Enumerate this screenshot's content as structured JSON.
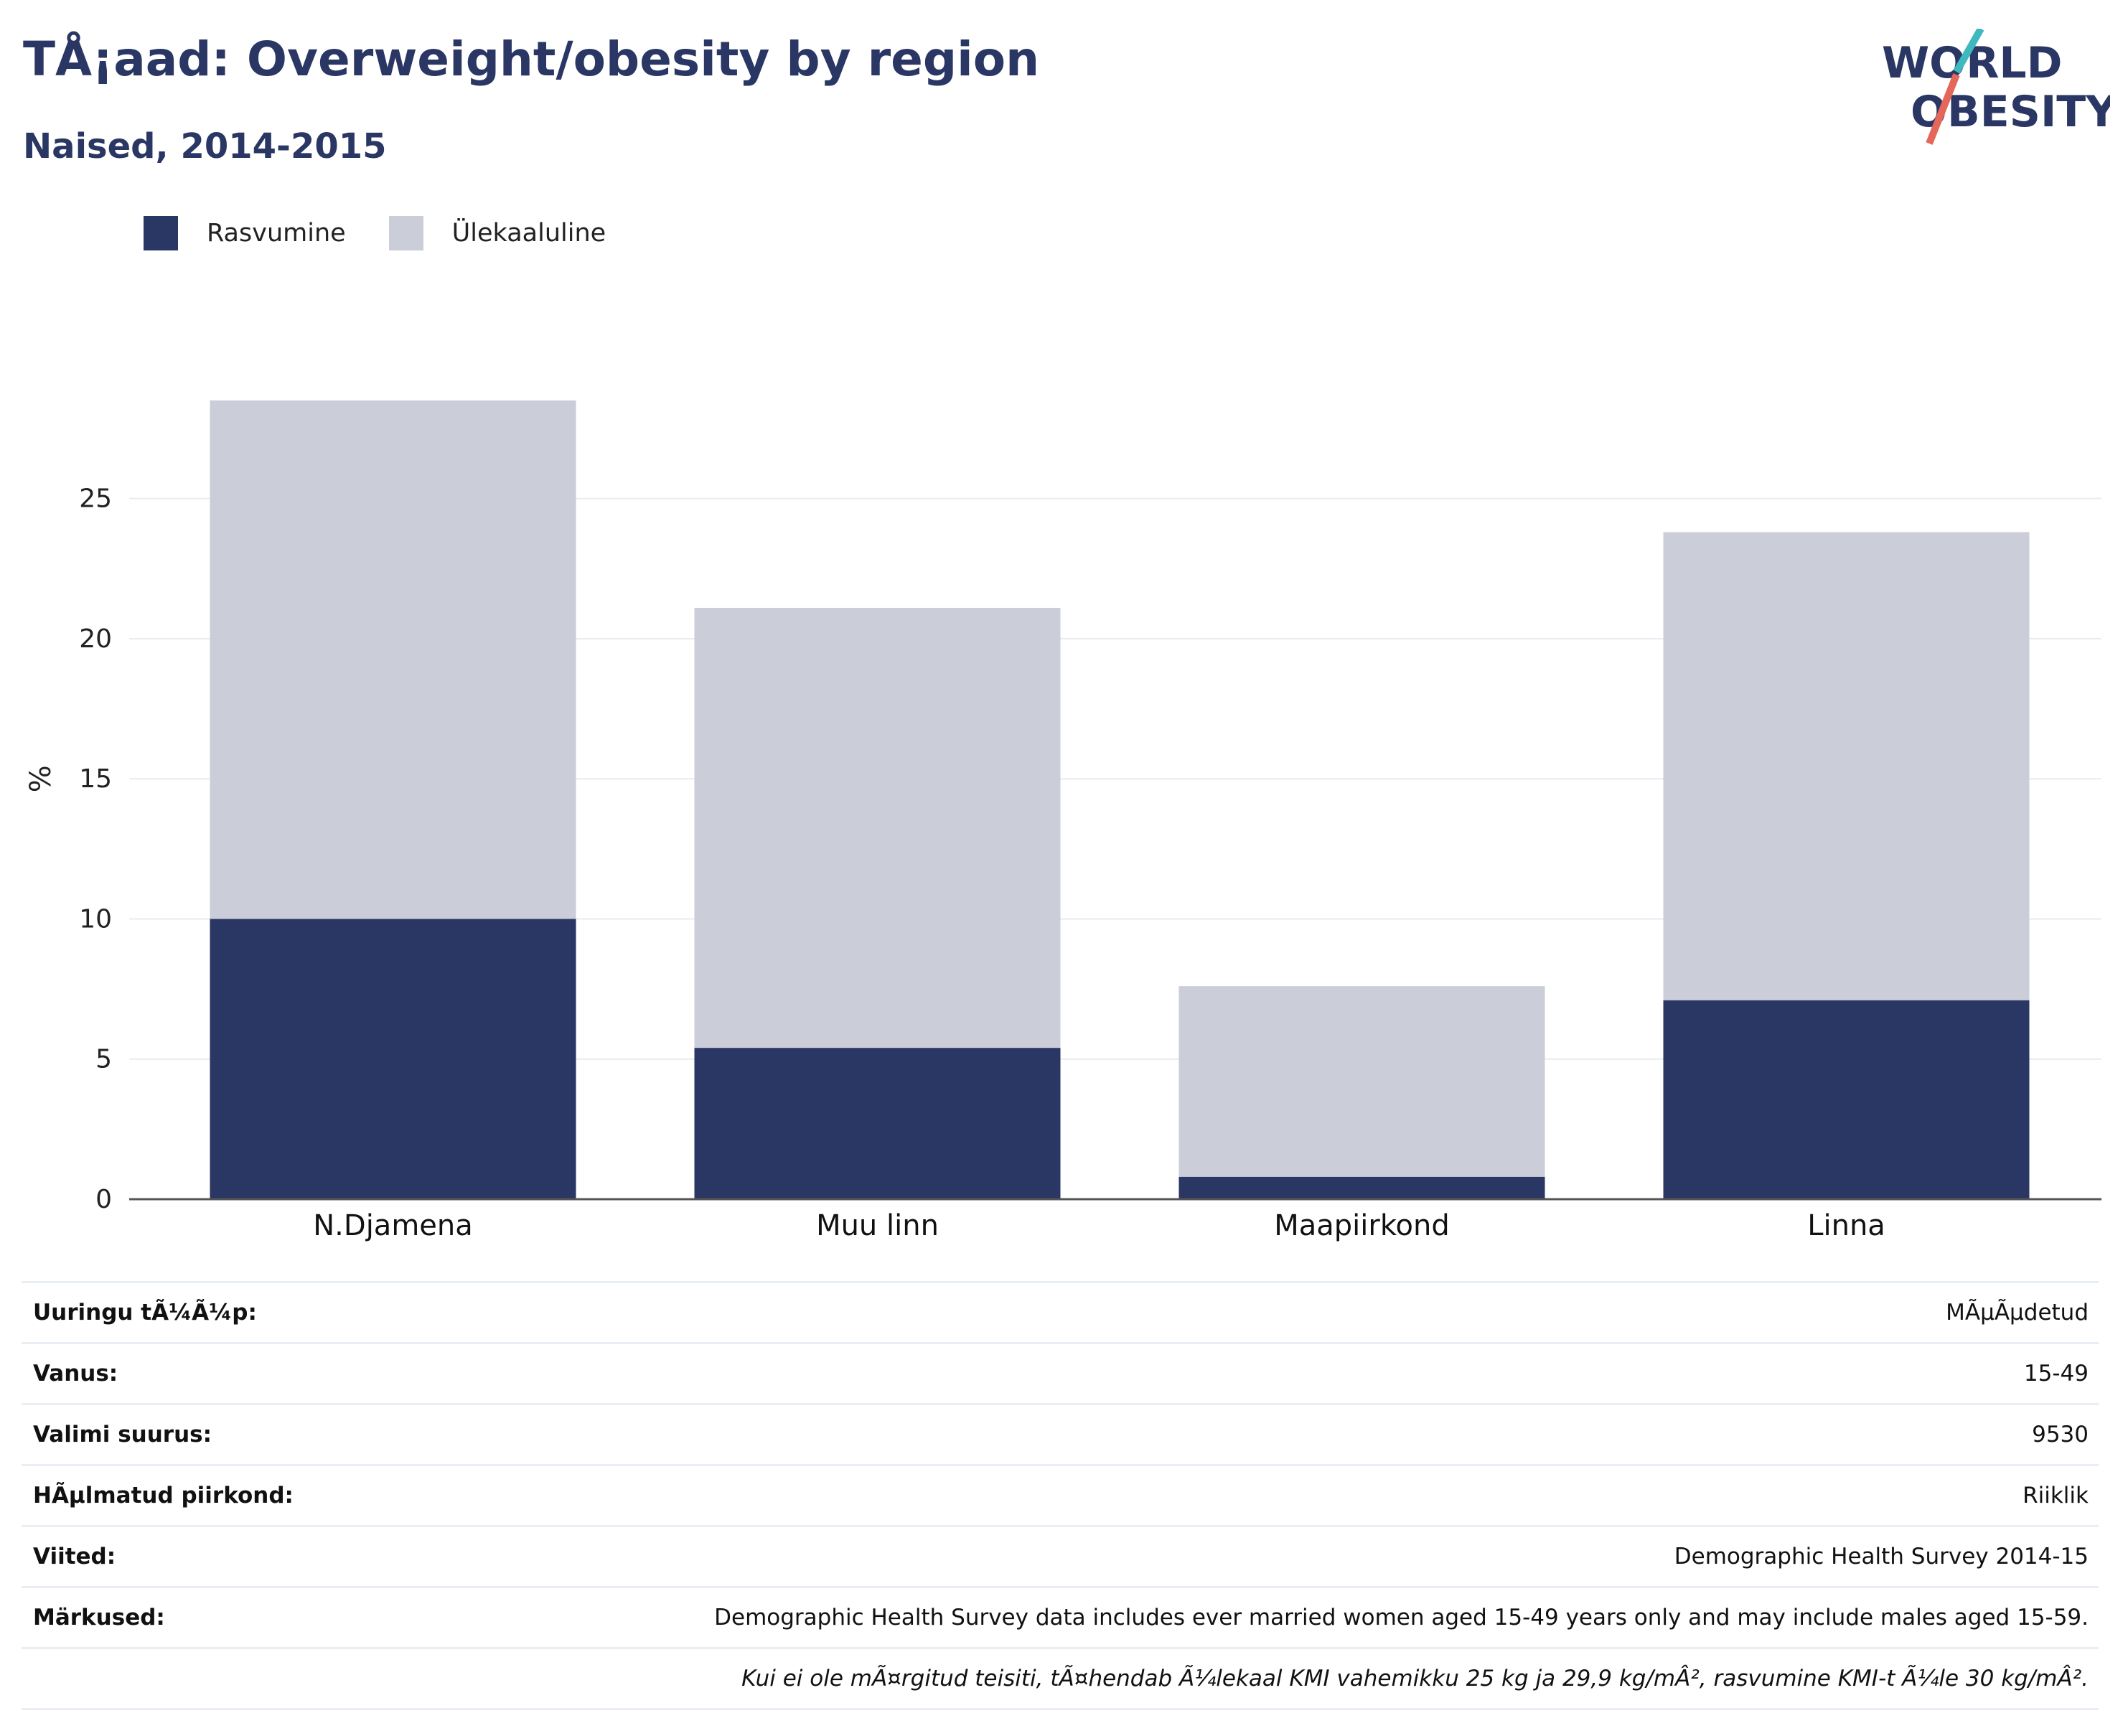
{
  "header": {
    "title": "TÅ¡aad: Overweight/obesity by region",
    "subtitle": "Naised, 2014-2015"
  },
  "logo": {
    "line1": "WORLD",
    "line2": "OBESITY"
  },
  "colors": {
    "obesity": "#2a3663",
    "overweight": "#cbcdd8",
    "text": "#2a3663",
    "grid": "#e8ebf0"
  },
  "chart_data": {
    "type": "bar",
    "stacked": true,
    "categories": [
      "N.Djamena",
      "Muu linn",
      "Maapiirkond",
      "Linna"
    ],
    "series": [
      {
        "name": "Rasvumine",
        "values": [
          10.0,
          5.4,
          0.8,
          7.1
        ]
      },
      {
        "name": "Ülekaaluline",
        "values": [
          18.5,
          15.7,
          6.8,
          16.7
        ]
      }
    ],
    "ylabel": "%",
    "ylim": [
      0,
      28.5
    ],
    "yticks": [
      0,
      5,
      10,
      15,
      20,
      25
    ],
    "grid": true,
    "legend": "top-left"
  },
  "info": {
    "rows": [
      {
        "label": "Uuringu tÃ¼Ã¼p:",
        "value": "MÃµÃµdetud"
      },
      {
        "label": "Vanus:",
        "value": "15-49"
      },
      {
        "label": "Valimi suurus:",
        "value": "9530"
      },
      {
        "label": "HÃµlmatud piirkond:",
        "value": "Riiklik"
      },
      {
        "label": "Viited:",
        "value": "Demographic Health Survey 2014-15"
      },
      {
        "label": "Märkused:",
        "value": "Demographic Health Survey data includes ever married women aged 15-49 years only and may include males aged 15-59."
      },
      {
        "label": "",
        "value": "Kui ei ole mÃ¤rgitud teisiti, tÃ¤hendab Ã¼lekaal KMI vahemikku 25 kg ja 29,9 kg/mÂ², rasvumine KMI-t Ã¼le 30 kg/mÂ²."
      }
    ]
  }
}
